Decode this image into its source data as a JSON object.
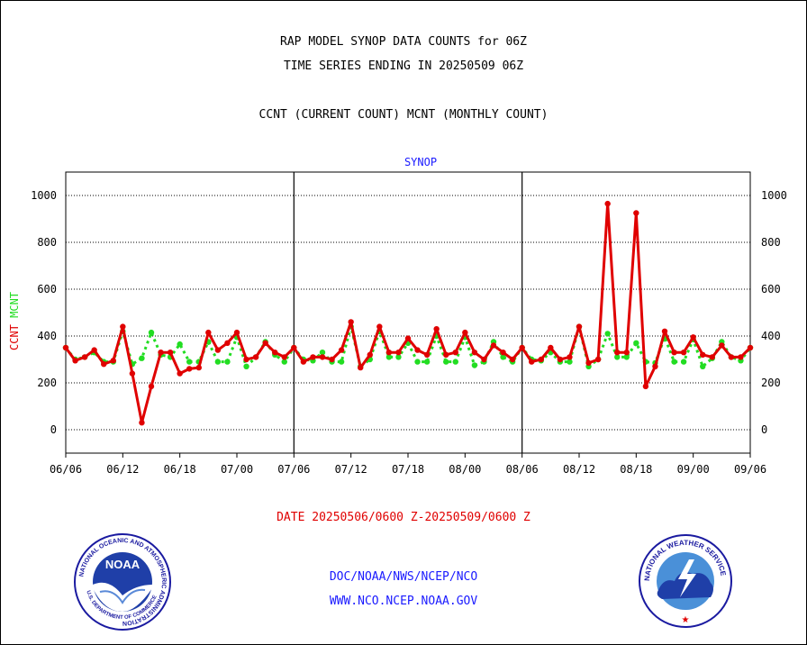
{
  "titles": {
    "line1": "RAP MODEL SYNOP DATA COUNTS for 06Z",
    "line2": "TIME SERIES ENDING IN 20250509 06Z",
    "line3": "CCNT (CURRENT COUNT) MCNT (MONTHLY COUNT)"
  },
  "date_range": "DATE 20250506/0600 Z-20250509/0600 Z",
  "footer": {
    "org": "DOC/NOAA/NWS/NCEP/NCO",
    "url": "WWW.NCO.NCEP.NOAA.GOV"
  },
  "logos": {
    "noaa_text": "NOAA",
    "noaa_ring": "NATIONAL OCEANIC AND ATMOSPHERIC ADMINISTRATION",
    "noaa_dept": "U.S. DEPARTMENT OF COMMERCE",
    "nws_ring": "NATIONAL WEATHER SERVICE"
  },
  "colors": {
    "ccnt": "#e00000",
    "mcnt": "#22dd22",
    "title": "#1a1aff",
    "grid": "#000000"
  },
  "chart_data": {
    "type": "line",
    "title": "SYNOP",
    "ylabel_left": [
      "CCNT",
      "MCNT"
    ],
    "ylabel_right": "",
    "ylim": [
      -100,
      1100
    ],
    "yticks": [
      0,
      200,
      400,
      600,
      800,
      1000
    ],
    "grid": "horizontal dotted",
    "x_ticks": [
      "06/06",
      "06/12",
      "06/18",
      "07/00",
      "07/06",
      "07/12",
      "07/18",
      "08/00",
      "08/06",
      "08/12",
      "08/18",
      "09/00",
      "09/06"
    ],
    "x_count": 73,
    "series": [
      {
        "name": "CCNT",
        "color": "#e00000",
        "values": [
          350,
          295,
          310,
          340,
          280,
          295,
          440,
          240,
          30,
          185,
          330,
          330,
          240,
          260,
          265,
          415,
          340,
          370,
          415,
          300,
          310,
          370,
          330,
          310,
          350,
          290,
          310,
          310,
          300,
          340,
          460,
          265,
          320,
          440,
          330,
          330,
          390,
          340,
          320,
          430,
          320,
          330,
          415,
          330,
          300,
          360,
          330,
          300,
          350,
          290,
          300,
          350,
          300,
          310,
          440,
          285,
          300,
          965,
          330,
          330,
          925,
          185,
          270,
          420,
          330,
          330,
          395,
          320,
          310,
          360,
          310,
          310,
          350
        ]
      },
      {
        "name": "MCNT",
        "color": "#22dd22",
        "values": [
          350,
          300,
          310,
          330,
          290,
          290,
          420,
          280,
          305,
          415,
          320,
          310,
          365,
          290,
          290,
          375,
          290,
          290,
          395,
          270,
          310,
          375,
          320,
          290,
          350,
          300,
          295,
          330,
          290,
          290,
          440,
          270,
          300,
          420,
          310,
          310,
          370,
          290,
          290,
          400,
          290,
          290,
          395,
          275,
          290,
          375,
          310,
          290,
          350,
          300,
          295,
          330,
          290,
          290,
          440,
          270,
          300,
          410,
          310,
          310,
          370,
          290,
          285,
          395,
          290,
          290,
          385,
          270,
          305,
          375,
          310,
          295,
          350
        ]
      }
    ]
  }
}
